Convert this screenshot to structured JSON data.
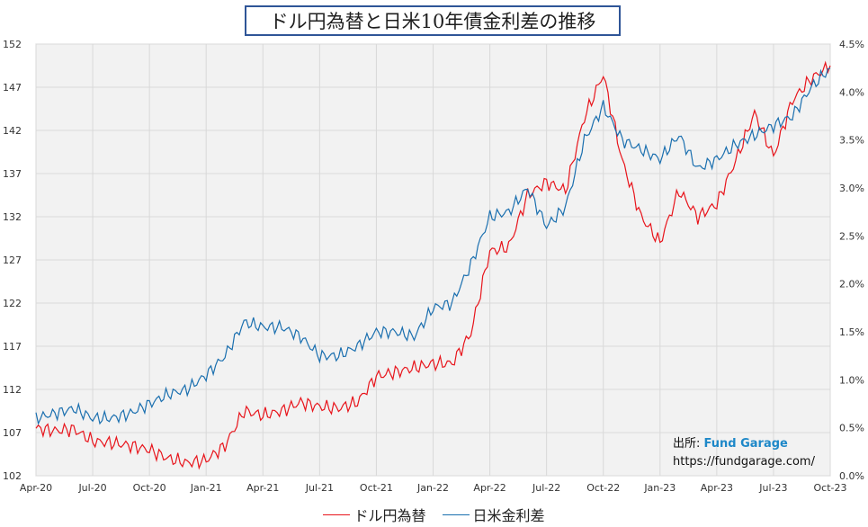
{
  "chart_data": {
    "type": "line",
    "title": "ドル円為替と日米10年債金利差の推移",
    "x_ticks": [
      "Apr-20",
      "Jul-20",
      "Oct-20",
      "Jan-21",
      "Apr-21",
      "Jul-21",
      "Oct-21",
      "Jan-22",
      "Apr-22",
      "Jul-22",
      "Oct-22",
      "Jan-23",
      "Apr-23",
      "Jul-23",
      "Oct-23"
    ],
    "x_range": [
      "2020-04",
      "2023-10"
    ],
    "y_left": {
      "ticks": [
        "102",
        "107",
        "112",
        "117",
        "122",
        "127",
        "132",
        "137",
        "142",
        "147",
        "152"
      ],
      "range": [
        102,
        152
      ]
    },
    "y_right": {
      "ticks": [
        "0.0%",
        "0.5%",
        "1.0%",
        "1.5%",
        "2.0%",
        "2.5%",
        "3.0%",
        "3.5%",
        "4.0%",
        "4.5%"
      ],
      "range": [
        0,
        4.5
      ]
    },
    "grid": true,
    "legend_position": "bottom",
    "series": [
      {
        "name": "ドル円為替",
        "color": "#e8141b",
        "axis": "left",
        "x": [
          "2020-04",
          "2020-05",
          "2020-06",
          "2020-07",
          "2020-08",
          "2020-09",
          "2020-10",
          "2020-11",
          "2020-12",
          "2021-01",
          "2021-02",
          "2021-03",
          "2021-04",
          "2021-05",
          "2021-06",
          "2021-07",
          "2021-08",
          "2021-09",
          "2021-10",
          "2021-11",
          "2021-12",
          "2022-01",
          "2022-02",
          "2022-03",
          "2022-04",
          "2022-05",
          "2022-06",
          "2022-07",
          "2022-08",
          "2022-09",
          "2022-10",
          "2022-11",
          "2022-12",
          "2023-01",
          "2023-02",
          "2023-03",
          "2023-04",
          "2023-05",
          "2023-06",
          "2023-07",
          "2023-08",
          "2023-09",
          "2023-10"
        ],
        "values": [
          107.5,
          107.2,
          107.4,
          106.0,
          105.8,
          105.5,
          105.0,
          104.0,
          103.5,
          103.8,
          105.5,
          109.5,
          109.0,
          109.5,
          110.5,
          110.0,
          109.8,
          110.5,
          113.5,
          114.0,
          114.5,
          115.0,
          115.0,
          118.5,
          128.0,
          128.5,
          134.5,
          136.0,
          135.0,
          143.5,
          148.5,
          138.5,
          132.0,
          129.0,
          135.0,
          132.0,
          133.5,
          138.5,
          144.0,
          139.0,
          145.5,
          148.0,
          149.5
        ]
      },
      {
        "name": "日米金利差",
        "color": "#1a6faf",
        "axis": "right",
        "x": [
          "2020-04",
          "2020-05",
          "2020-06",
          "2020-07",
          "2020-08",
          "2020-09",
          "2020-10",
          "2020-11",
          "2020-12",
          "2021-01",
          "2021-02",
          "2021-03",
          "2021-04",
          "2021-05",
          "2021-06",
          "2021-07",
          "2021-08",
          "2021-09",
          "2021-10",
          "2021-11",
          "2021-12",
          "2022-01",
          "2022-02",
          "2022-03",
          "2022-04",
          "2022-05",
          "2022-06",
          "2022-07",
          "2022-08",
          "2022-09",
          "2022-10",
          "2022-11",
          "2022-12",
          "2023-01",
          "2023-02",
          "2023-03",
          "2023-04",
          "2023-05",
          "2023-06",
          "2023-07",
          "2023-08",
          "2023-09",
          "2023-10"
        ],
        "values": [
          0.6,
          0.65,
          0.7,
          0.6,
          0.6,
          0.65,
          0.75,
          0.85,
          0.9,
          1.05,
          1.25,
          1.6,
          1.55,
          1.55,
          1.45,
          1.25,
          1.25,
          1.35,
          1.5,
          1.5,
          1.45,
          1.75,
          1.8,
          2.2,
          2.7,
          2.75,
          3.0,
          2.6,
          2.8,
          3.5,
          3.85,
          3.5,
          3.4,
          3.3,
          3.55,
          3.2,
          3.3,
          3.45,
          3.55,
          3.65,
          3.75,
          4.05,
          4.25
        ]
      }
    ]
  },
  "source": {
    "label": "出所:",
    "brand": "Fund Garage",
    "url": "https://fundgarage.com/"
  }
}
